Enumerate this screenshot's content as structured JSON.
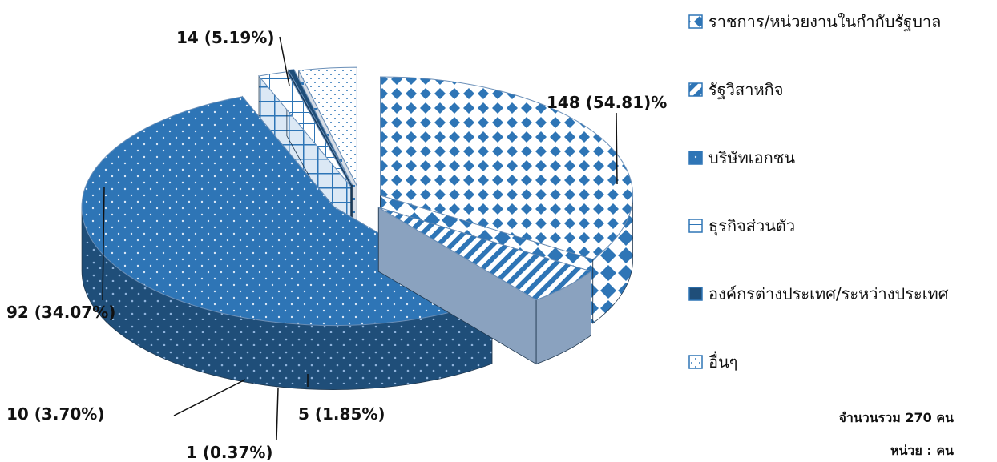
{
  "chart_data": {
    "type": "pie",
    "style": "3d-exploded",
    "series": [
      {
        "name": "ราชการ/หน่วยงานในกำกับรัฐบาล",
        "value": 92,
        "percent": 34.07,
        "label": "92 (34.07%)",
        "pattern": "diamond",
        "color": "#2e75b6"
      },
      {
        "name": "รัฐวิสาหกิจ",
        "value": 14,
        "percent": 5.19,
        "label": "14 (5.19%)",
        "pattern": "diagonal",
        "color": "#2e75b6"
      },
      {
        "name": "บริษัทเอกชน",
        "value": 148,
        "percent": 54.81,
        "label": "148 (54.81)%",
        "pattern": "dots",
        "color": "#2e75b6"
      },
      {
        "name": "ธุรกิจส่วนตัว",
        "value": 5,
        "percent": 1.85,
        "label": "5 (1.85%)",
        "pattern": "grid",
        "color": "#dbe8f5"
      },
      {
        "name": "องค์กรต่างประเทศ/ระหว่างประเทศ",
        "value": 1,
        "percent": 0.37,
        "label": "1 (0.37%)",
        "pattern": "solid",
        "color": "#1f4e79"
      },
      {
        "name": "อื่นๆ",
        "value": 10,
        "percent": 3.7,
        "label": "10 (3.70%)",
        "pattern": "light-dots",
        "color": "#e6eef7"
      }
    ],
    "total_note": "จำนวนรวม 270 คน",
    "unit_note": "หน่วย : คน",
    "legend_position": "right"
  }
}
